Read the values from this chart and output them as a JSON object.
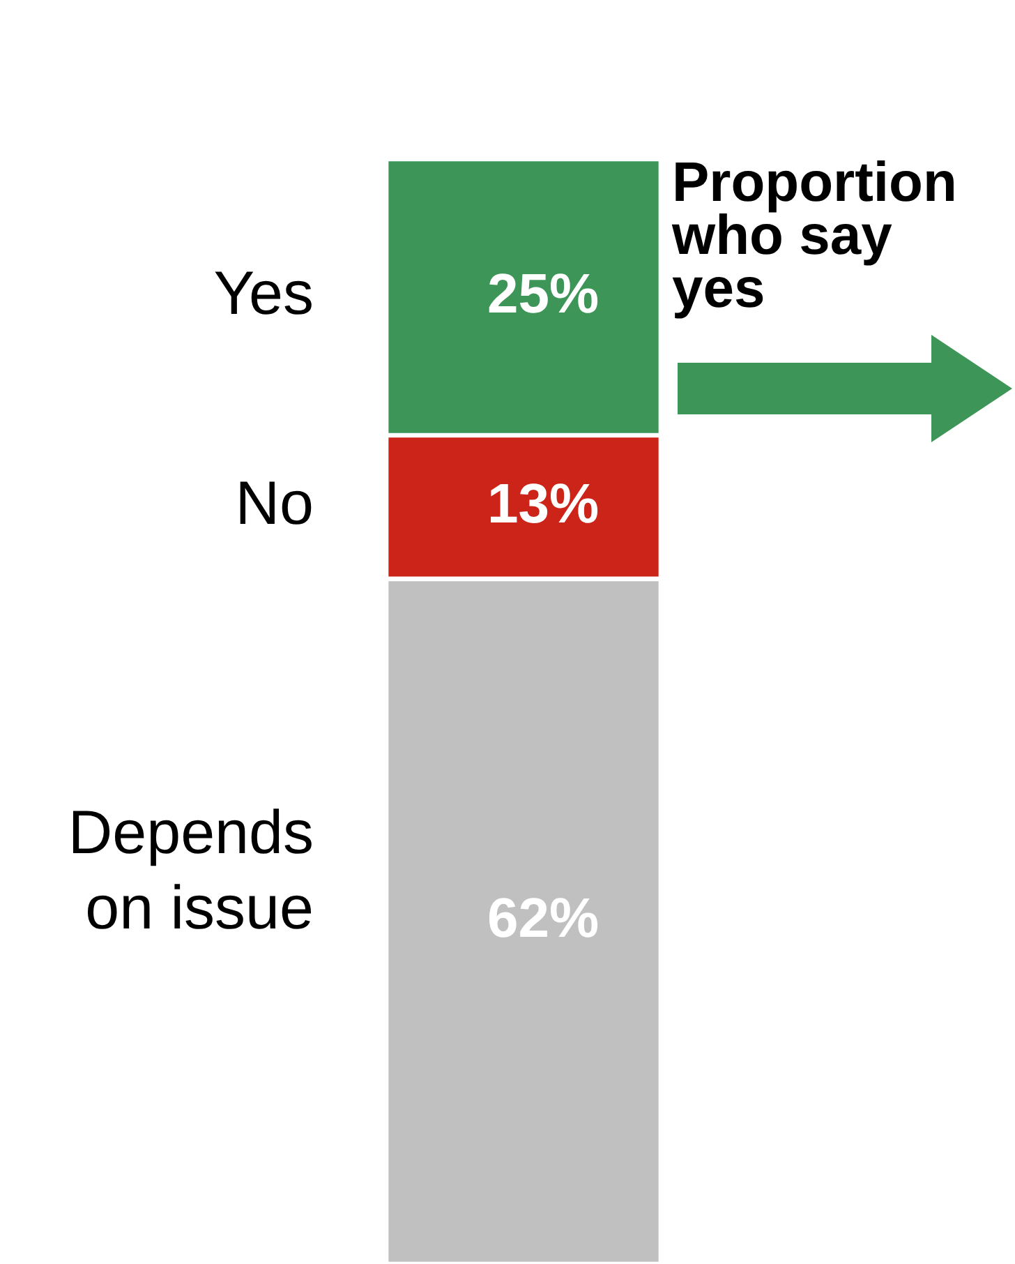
{
  "chart_data": {
    "type": "bar",
    "stacked": true,
    "categories": [
      null
    ],
    "series": [
      {
        "name": "Depends on issue",
        "color": "#c0c0c0",
        "values": [
          62
        ],
        "value_labels": [
          "62%"
        ]
      },
      {
        "name": "No",
        "color": "#cc2418",
        "values": [
          13
        ],
        "value_labels": [
          "13%"
        ]
      },
      {
        "name": "Yes",
        "color": "#3d9657",
        "values": [
          25
        ],
        "value_labels": [
          "25%"
        ]
      }
    ],
    "annotations": [
      "Proportion who say yes"
    ],
    "legend": false
  }
}
